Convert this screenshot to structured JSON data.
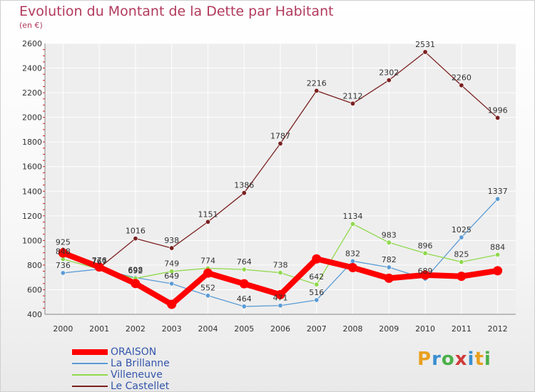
{
  "colors": {
    "title": "#b23a5c",
    "axis": "#333333",
    "grid": "#ffffff",
    "tickMark": "#cc2222"
  },
  "logo": {
    "letters": [
      "P",
      "r",
      "o",
      "x",
      "i",
      "t",
      "i"
    ],
    "colors": [
      "#e8a020",
      "#3a8fd0",
      "#4ab048",
      "#d03a3a",
      "#3a8fd0",
      "#e8a020",
      "#4ab048"
    ]
  },
  "chart_data": {
    "type": "line",
    "title": "Evolution du Montant de la Dette par Habitant",
    "subtitle": "(en €)",
    "xlabel": "",
    "ylabel": "",
    "x": [
      2000,
      2001,
      2002,
      2003,
      2004,
      2005,
      2006,
      2007,
      2008,
      2009,
      2010,
      2011,
      2012
    ],
    "yticks": [
      400,
      600,
      800,
      1000,
      1200,
      1400,
      1600,
      1800,
      2000,
      2200,
      2400,
      2600
    ],
    "ylim": [
      400,
      2600
    ],
    "grid": true,
    "legend": "bottom-left",
    "series": [
      {
        "name": "ORAISON",
        "color": "#ff0000",
        "values": [
          898,
          784,
          650,
          481,
          735,
          648,
          560,
          850,
          779,
          693,
          719,
          709,
          754
        ],
        "labels": false
      },
      {
        "name": "La Brillanne",
        "color": "#5b9bd5",
        "values": [
          736,
          767,
          698,
          649,
          552,
          464,
          471,
          516,
          832,
          782,
          689,
          1025,
          1337
        ],
        "labels": true
      },
      {
        "name": "Villeneuve",
        "color": "#8fd94c",
        "values": [
          848,
          767,
          692,
          749,
          774,
          764,
          738,
          642,
          1134,
          983,
          896,
          825,
          884
        ],
        "labels": true
      },
      {
        "name": "Le Castellet",
        "color": "#7b2020",
        "values": [
          925,
          776,
          1016,
          938,
          1151,
          1386,
          1787,
          2216,
          2112,
          2302,
          2531,
          2260,
          1996
        ],
        "labels": true
      }
    ]
  }
}
